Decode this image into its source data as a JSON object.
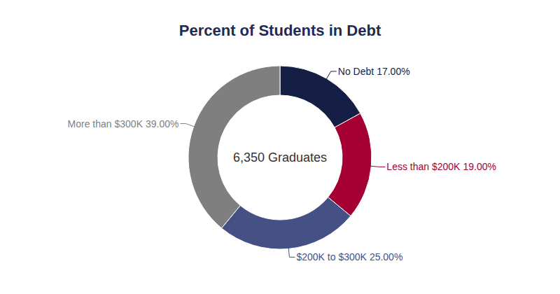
{
  "chart_data": {
    "type": "donut",
    "title": "Percent of Students in Debt",
    "annotations": [
      "6,350 Graduates"
    ],
    "categories": [
      "No Debt",
      "Less than $200K",
      "$200K to $300K",
      "More than $300K"
    ],
    "values": [
      17,
      19,
      25,
      39
    ],
    "value_labels": [
      "17.00%",
      "19.00%",
      "25.00%",
      "39.00%"
    ],
    "colors": [
      "#151f45",
      "#a50034",
      "#455084",
      "#7f7f7f"
    ],
    "data_labels": true
  }
}
